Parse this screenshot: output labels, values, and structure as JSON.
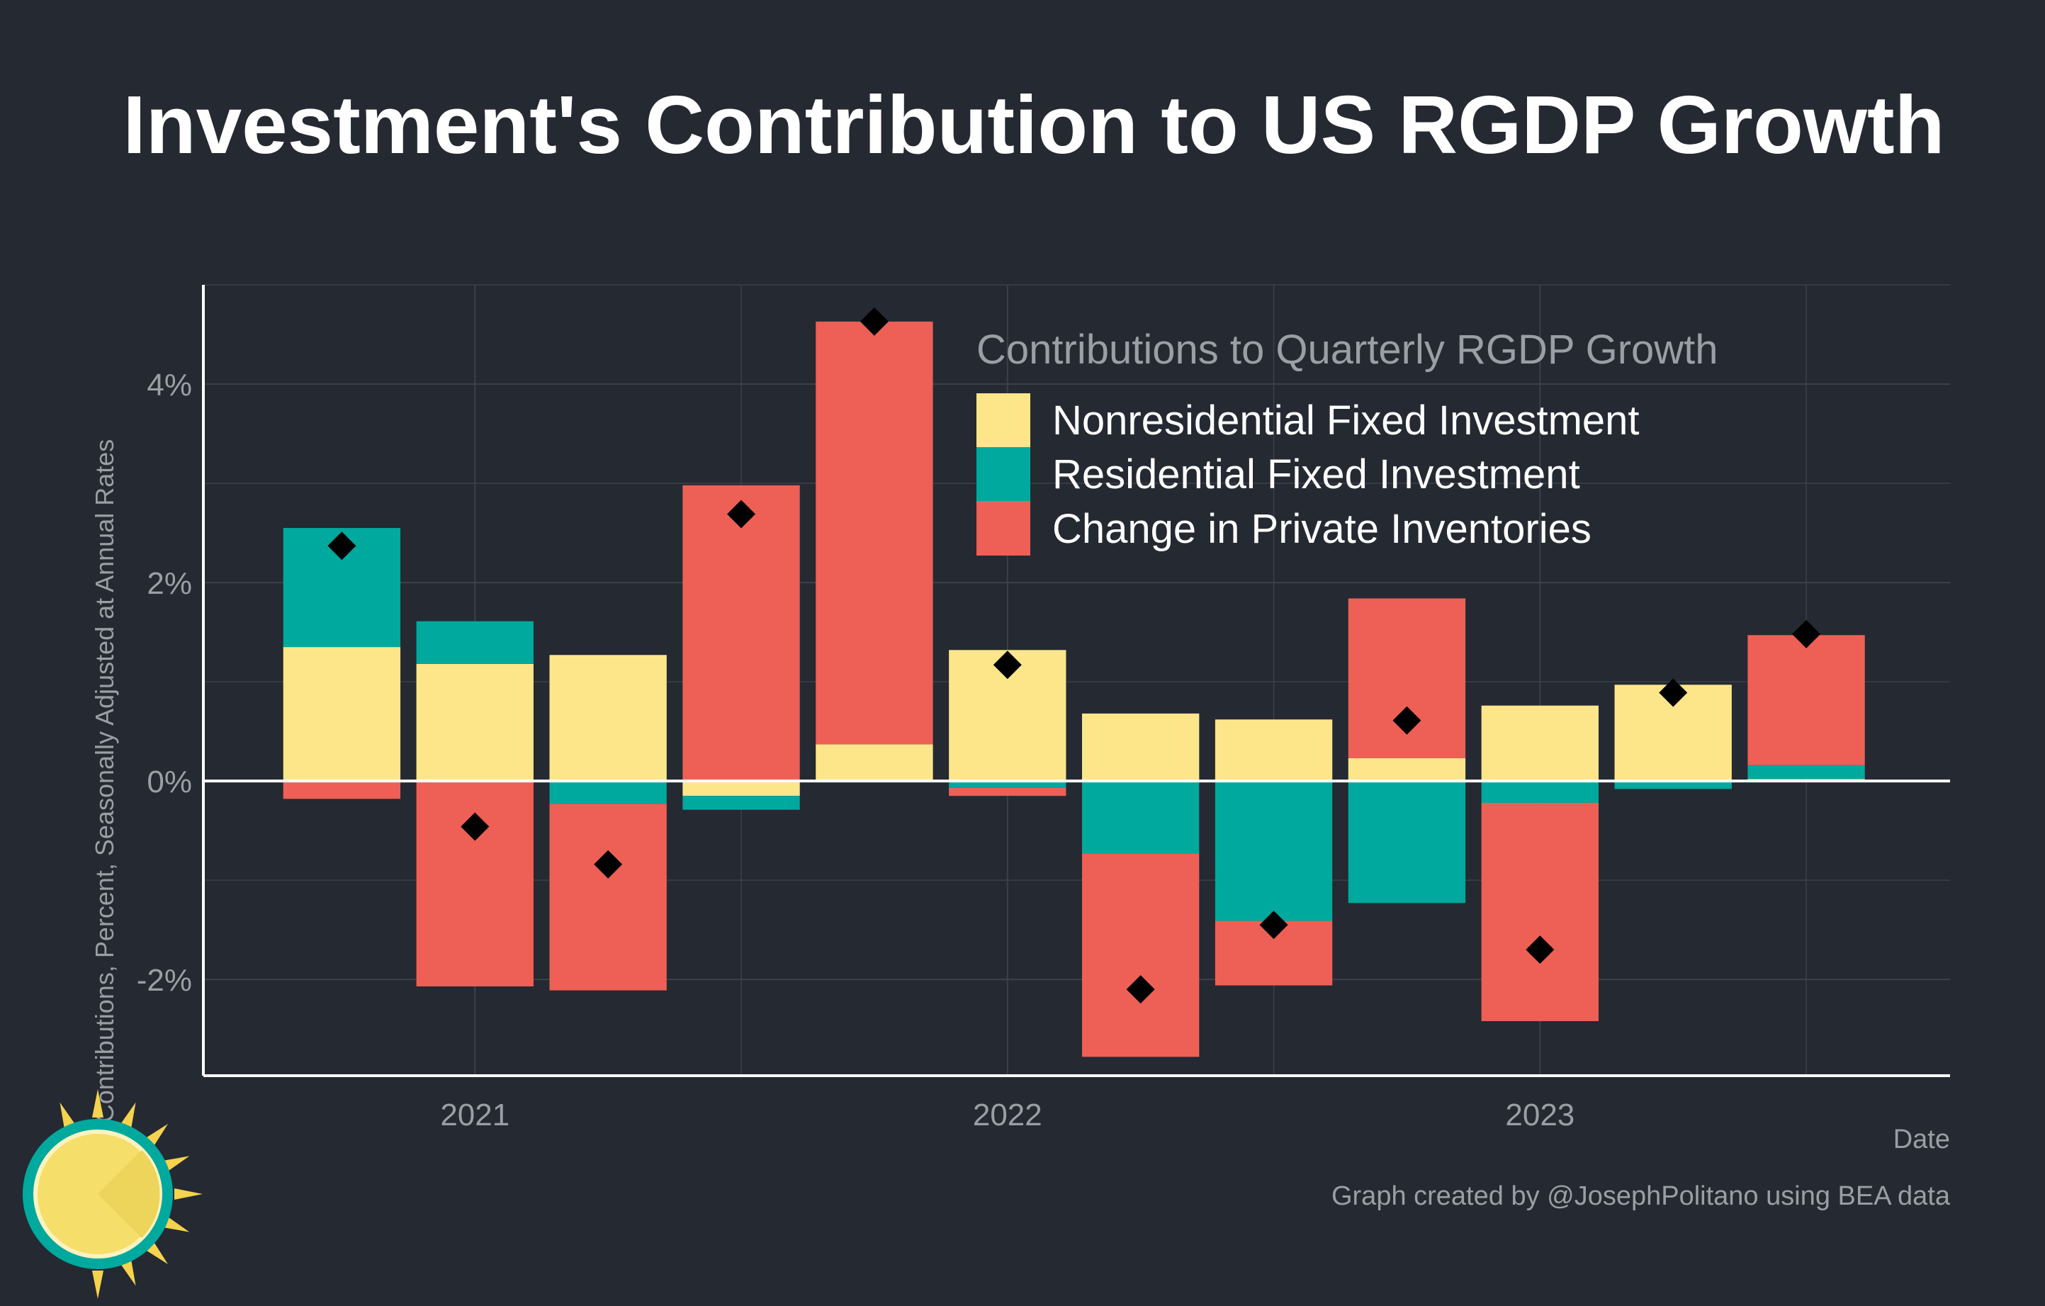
{
  "colors": {
    "background": "#252932",
    "nonresidential": "#FDE68A",
    "residential": "#00A99D",
    "inventories": "#EE6055",
    "marker": "#000000",
    "grid": "#3c4049",
    "axis": "#ffffff"
  },
  "chart_data": {
    "type": "bar",
    "stacked": true,
    "title": "Investment's Contribution to US RGDP Growth",
    "xlabel": "Date",
    "ylabel": "Contributions, Percent, Seasonally Adjusted at Annual Rates",
    "ylim": [
      -2.97,
      5.0
    ],
    "yticks": [
      4,
      2,
      0,
      -2
    ],
    "ytick_labels": [
      "4%",
      "2%",
      "0%",
      "-2%"
    ],
    "xticks": [
      2021,
      2022,
      2023
    ],
    "xtick_labels": [
      "2021",
      "2022",
      "2023"
    ],
    "categories": [
      "2020 Q4",
      "2021 Q1",
      "2021 Q2",
      "2021 Q3",
      "2021 Q4",
      "2022 Q1",
      "2022 Q2",
      "2022 Q3",
      "2022 Q4",
      "2023 Q1",
      "2023 Q2",
      "2023 Q3"
    ],
    "x": [
      2020.75,
      2021.0,
      2021.25,
      2021.5,
      2021.75,
      2022.0,
      2022.25,
      2022.5,
      2022.75,
      2023.0,
      2023.25,
      2023.5
    ],
    "series": [
      {
        "name": "Nonresidential Fixed Investment",
        "values": [
          1.35,
          1.18,
          1.27,
          -0.15,
          0.37,
          1.32,
          0.68,
          0.62,
          0.23,
          0.76,
          0.97,
          0.02
        ]
      },
      {
        "name": "Residential Fixed Investment",
        "values": [
          1.2,
          0.43,
          -0.23,
          -0.14,
          0.0,
          -0.07,
          -0.73,
          -1.41,
          -1.23,
          -0.22,
          -0.08,
          0.14
        ]
      },
      {
        "name": "Change in Private Inventories",
        "values": [
          -0.18,
          -2.07,
          -1.88,
          2.98,
          4.26,
          -0.08,
          -2.05,
          -0.65,
          1.61,
          -2.2,
          0.0,
          1.31
        ]
      }
    ],
    "total_markers": {
      "name": "Total",
      "values": [
        2.37,
        -0.46,
        -0.84,
        2.69,
        4.63,
        1.17,
        -2.1,
        -1.45,
        0.61,
        -1.7,
        0.89,
        1.48
      ]
    },
    "legend": {
      "title": "Contributions to Quarterly RGDP Growth",
      "placement": "top-right",
      "entries": [
        "Nonresidential Fixed Investment",
        "Residential Fixed Investment",
        "Change in Private Inventories"
      ]
    },
    "caption": "Graph created by @JosephPolitano using BEA data"
  },
  "logo": {
    "icon": "sun-logo-icon"
  }
}
